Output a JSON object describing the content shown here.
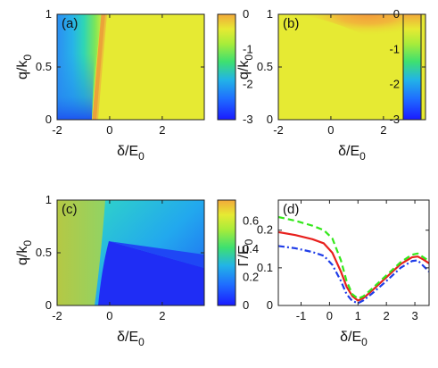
{
  "chart_data": [
    {
      "type": "heatmap",
      "panel_label": "(a)",
      "xlabel": "δ/E",
      "xlabel_sub": "0",
      "ylabel": "q/k",
      "ylabel_sub": "0",
      "xlim": [
        -2,
        3.6
      ],
      "ylim": [
        0,
        1
      ],
      "x_ticks": [
        -2,
        0,
        2
      ],
      "y_ticks": [
        0,
        0.5,
        1
      ],
      "colorbar": {
        "min": -3,
        "max": 0,
        "ticks": [
          0,
          -1,
          -2,
          -3
        ]
      },
      "description_values": {
        "background": -0.6,
        "ridge": -0.15,
        "left_min": -2.6
      }
    },
    {
      "type": "heatmap",
      "panel_label": "(b)",
      "xlabel": "δ/E",
      "xlabel_sub": "0",
      "ylabel": "q/k",
      "ylabel_sub": "0",
      "xlim": [
        -2,
        3.6
      ],
      "ylim": [
        0,
        1
      ],
      "x_ticks": [
        -2,
        0,
        2
      ],
      "y_ticks": [
        0,
        0.5,
        1
      ],
      "colorbar": {
        "min": -3,
        "max": 0,
        "ticks": [
          0,
          -1,
          -2,
          -3
        ]
      }
    },
    {
      "type": "heatmap",
      "panel_label": "(c)",
      "xlabel": "δ/E",
      "xlabel_sub": "0",
      "ylabel": "q/k",
      "ylabel_sub": "0",
      "xlim": [
        -2,
        3.6
      ],
      "ylim": [
        0,
        1
      ],
      "x_ticks": [
        -2,
        0,
        2
      ],
      "y_ticks": [
        0,
        0.5,
        1
      ],
      "colorbar": {
        "min": 0,
        "max": 0.75,
        "ticks": [
          0.6,
          0.4,
          0.2,
          0
        ]
      }
    },
    {
      "type": "line",
      "panel_label": "(d)",
      "xlabel": "δ/E",
      "xlabel_sub": "0",
      "ylabel": "Γ/E",
      "ylabel_sub": "0",
      "xlim": [
        -1.8,
        3.5
      ],
      "ylim": [
        0,
        0.28
      ],
      "x_ticks": [
        -1,
        0,
        1,
        2,
        3
      ],
      "y_ticks": [
        0,
        0.1,
        0.2
      ],
      "series": [
        {
          "color": "#e8201d",
          "style": "solid",
          "x": [
            -1.8,
            -1.2,
            -0.6,
            -0.2,
            0.1,
            0.4,
            0.6,
            0.8,
            1.0,
            1.2,
            1.5,
            2.0,
            2.5,
            2.9,
            3.1,
            3.3,
            3.5
          ],
          "y": [
            0.195,
            0.187,
            0.176,
            0.165,
            0.14,
            0.09,
            0.05,
            0.025,
            0.013,
            0.02,
            0.04,
            0.075,
            0.11,
            0.128,
            0.13,
            0.122,
            0.112
          ]
        },
        {
          "color": "#33e81a",
          "style": "dashed",
          "x": [
            -1.8,
            -1.2,
            -0.6,
            -0.2,
            0.1,
            0.4,
            0.6,
            0.8,
            1.0,
            1.2,
            1.5,
            2.0,
            2.5,
            2.9,
            3.1,
            3.3,
            3.5
          ],
          "y": [
            0.235,
            0.225,
            0.212,
            0.2,
            0.178,
            0.12,
            0.065,
            0.03,
            0.018,
            0.025,
            0.045,
            0.08,
            0.115,
            0.135,
            0.138,
            0.128,
            0.118
          ]
        },
        {
          "color": "#1f3de8",
          "style": "dashdot",
          "x": [
            -1.8,
            -1.2,
            -0.6,
            -0.2,
            0.1,
            0.4,
            0.6,
            0.8,
            1.0,
            1.2,
            1.5,
            2.0,
            2.5,
            2.9,
            3.1,
            3.3,
            3.5
          ],
          "y": [
            0.158,
            0.152,
            0.142,
            0.132,
            0.108,
            0.065,
            0.03,
            0.012,
            0.006,
            0.014,
            0.032,
            0.065,
            0.1,
            0.118,
            0.12,
            0.105,
            0.09
          ]
        }
      ]
    }
  ]
}
